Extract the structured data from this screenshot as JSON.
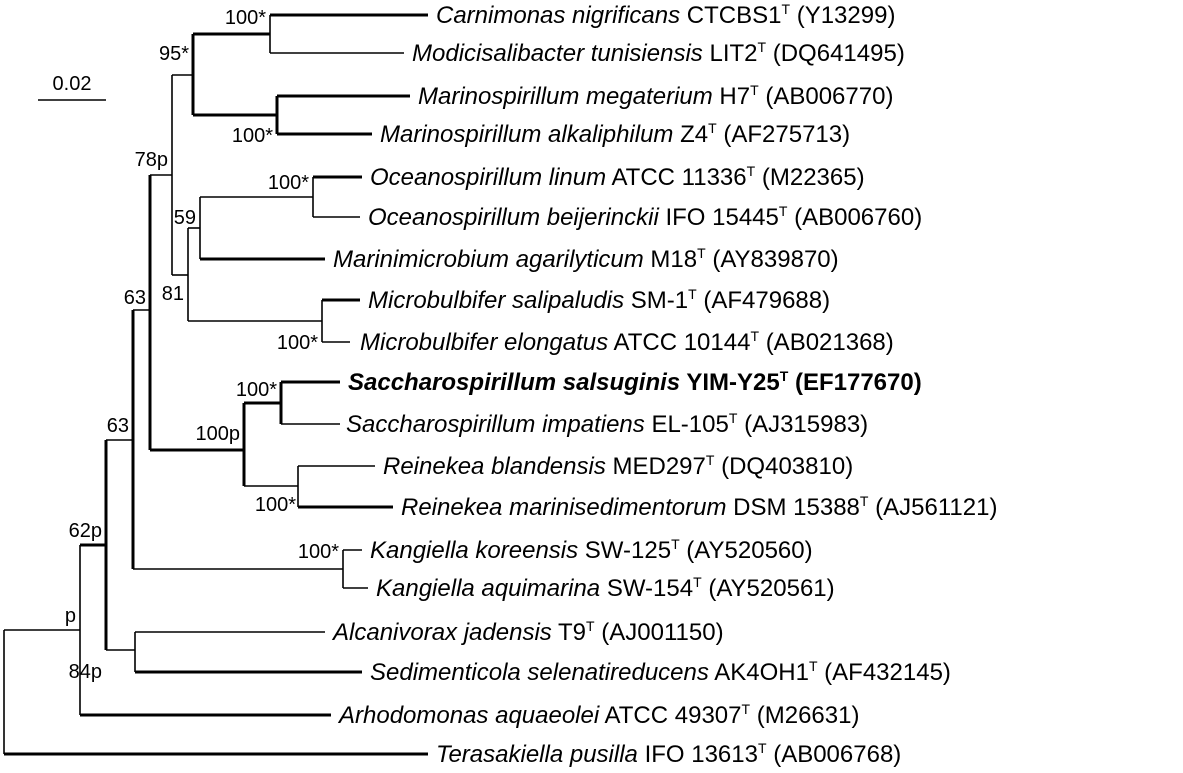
{
  "scale_bar": {
    "label": "0.02"
  },
  "taxa": [
    {
      "genus": "Carnimonas nigrificans",
      "strain": "CTCBS1",
      "type_mark": "T",
      "accession": "(Y13299)",
      "bold": false
    },
    {
      "genus": "Modicisalibacter tunisiensis",
      "strain": "LIT2",
      "type_mark": "T",
      "accession": "(DQ641495)",
      "bold": false
    },
    {
      "genus": "Marinospirillum megaterium",
      "strain": "H7",
      "type_mark": "T",
      "accession": "(AB006770)",
      "bold": false
    },
    {
      "genus": "Marinospirillum alkaliphilum",
      "strain": "Z4",
      "type_mark": "T",
      "accession": "(AF275713)",
      "bold": false
    },
    {
      "genus": "Oceanospirillum linum",
      "strain": "ATCC 11336",
      "type_mark": "T",
      "accession": "(M22365)",
      "bold": false
    },
    {
      "genus": "Oceanospirillum beijerinckii",
      "strain": "IFO 15445",
      "type_mark": "T",
      "accession": "(AB006760)",
      "bold": false
    },
    {
      "genus": "Marinimicrobium agarilyticum",
      "strain": "M18",
      "type_mark": "T",
      "accession": "(AY839870)",
      "bold": false
    },
    {
      "genus": "Microbulbifer salipaludis",
      "strain": "SM-1",
      "type_mark": "T",
      "accession": "(AF479688)",
      "bold": false
    },
    {
      "genus": "Microbulbifer elongatus",
      "strain": "ATCC 10144",
      "type_mark": "T",
      "accession": "(AB021368)",
      "bold": false
    },
    {
      "genus": "Saccharospirillum salsuginis",
      "strain": "YIM-Y25",
      "type_mark": "T",
      "accession": "(EF177670)",
      "bold": true
    },
    {
      "genus": "Saccharospirillum impatiens",
      "strain": "EL-105",
      "type_mark": "T",
      "accession": "(AJ315983)",
      "bold": false
    },
    {
      "genus": "Reinekea blandensis",
      "strain": "MED297",
      "type_mark": "T",
      "accession": "(DQ403810)",
      "bold": false
    },
    {
      "genus": "Reinekea marinisedimentorum",
      "strain": "DSM 15388",
      "type_mark": "T",
      "accession": "(AJ561121)",
      "bold": false
    },
    {
      "genus": "Kangiella koreensis",
      "strain": "SW-125",
      "type_mark": "T",
      "accession": "(AY520560)",
      "bold": false
    },
    {
      "genus": "Kangiella aquimarina",
      "strain": "SW-154",
      "type_mark": "T",
      "accession": "(AY520561)",
      "bold": false
    },
    {
      "genus": "Alcanivorax jadensis",
      "strain": "T9",
      "type_mark": "T",
      "accession": "(AJ001150)",
      "bold": false
    },
    {
      "genus": "Sedimenticola selenatireducens",
      "strain": "AK4OH1",
      "type_mark": "T",
      "accession": "(AF432145)",
      "bold": false
    },
    {
      "genus": "Arhodomonas aquaeolei",
      "strain": "ATCC 49307",
      "type_mark": "T",
      "accession": "(M26631)",
      "bold": false
    },
    {
      "genus": "Terasakiella pusilla",
      "strain": "IFO 13613",
      "type_mark": "T",
      "accession": "(AB006768)",
      "bold": false
    }
  ],
  "support_values": [
    "100*",
    "95*",
    "100*",
    "78p",
    "100*",
    "59",
    "81",
    "100*",
    "63",
    "100*",
    "100p",
    "100*",
    "63",
    "100*",
    "62p",
    "p",
    "84p"
  ]
}
